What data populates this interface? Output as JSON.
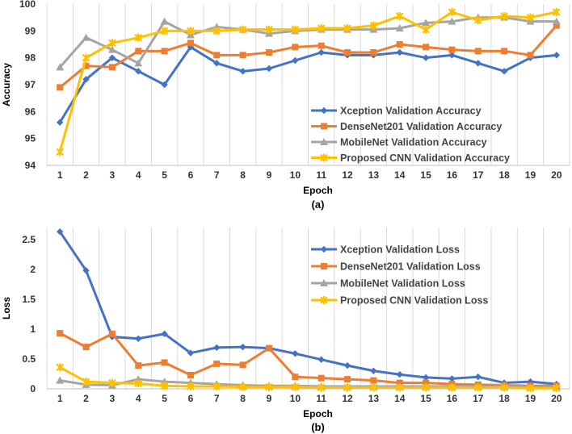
{
  "chart_data": [
    {
      "type": "line",
      "title": "",
      "xlabel": "Epoch",
      "ylabel": "Accuracy",
      "caption": "(a)",
      "categories": [
        "1",
        "2",
        "3",
        "4",
        "5",
        "6",
        "7",
        "8",
        "9",
        "10",
        "11",
        "12",
        "13",
        "14",
        "15",
        "16",
        "17",
        "18",
        "19",
        "20"
      ],
      "ylim": [
        94,
        100
      ],
      "yticks": [
        94,
        95,
        96,
        97,
        98,
        99,
        100
      ],
      "grid": "vertical",
      "legend_position": "bottom-right",
      "series": [
        {
          "name": "Xception Validation Accuracy",
          "color": "#4472C4",
          "marker": "diamond",
          "values": [
            95.6,
            97.2,
            98.0,
            97.5,
            97.0,
            98.4,
            97.8,
            97.5,
            97.6,
            97.9,
            98.2,
            98.1,
            98.1,
            98.2,
            98.0,
            98.1,
            97.8,
            97.5,
            98.0,
            98.1
          ]
        },
        {
          "name": "DenseNet201 Validation Accuracy",
          "color": "#ED7D31",
          "marker": "square",
          "values": [
            96.9,
            97.7,
            97.65,
            98.25,
            98.25,
            98.55,
            98.1,
            98.1,
            98.2,
            98.4,
            98.45,
            98.2,
            98.2,
            98.5,
            98.4,
            98.3,
            98.25,
            98.25,
            98.1,
            99.2
          ]
        },
        {
          "name": "MobileNet Validation Accuracy",
          "color": "#A5A5A5",
          "marker": "triangle",
          "values": [
            97.65,
            98.75,
            98.3,
            97.8,
            99.35,
            98.85,
            99.15,
            99.05,
            98.9,
            99.0,
            99.05,
            99.05,
            99.05,
            99.1,
            99.3,
            99.35,
            99.5,
            99.5,
            99.35,
            99.35
          ]
        },
        {
          "name": "Proposed CNN Validation Accuracy",
          "color": "#FFC000",
          "marker": "star",
          "values": [
            94.5,
            98.0,
            98.55,
            98.75,
            99.0,
            99.0,
            99.0,
            99.05,
            99.05,
            99.05,
            99.1,
            99.1,
            99.2,
            99.55,
            99.05,
            99.7,
            99.4,
            99.55,
            99.5,
            99.7
          ]
        }
      ]
    },
    {
      "type": "line",
      "title": "",
      "xlabel": "Epoch",
      "ylabel": "Loss",
      "caption": "(b)",
      "categories": [
        "1",
        "2",
        "3",
        "4",
        "5",
        "6",
        "7",
        "8",
        "9",
        "10",
        "11",
        "12",
        "13",
        "14",
        "15",
        "16",
        "17",
        "18",
        "19",
        "20"
      ],
      "ylim": [
        0,
        2.7
      ],
      "yticks": [
        0,
        0.5,
        1,
        1.5,
        2,
        2.5
      ],
      "ytick_labels": [
        "0",
        "0.5",
        "1",
        "1.5",
        "2",
        "2.5"
      ],
      "grid": "vertical",
      "legend_position": "top-right",
      "series": [
        {
          "name": "Xception Validation Loss",
          "color": "#4472C4",
          "marker": "diamond",
          "values": [
            2.63,
            1.98,
            0.87,
            0.84,
            0.92,
            0.6,
            0.69,
            0.7,
            0.68,
            0.59,
            0.49,
            0.39,
            0.3,
            0.24,
            0.19,
            0.17,
            0.2,
            0.1,
            0.12,
            0.08
          ]
        },
        {
          "name": "DenseNet201 Validation Loss",
          "color": "#ED7D31",
          "marker": "square",
          "values": [
            0.93,
            0.7,
            0.92,
            0.39,
            0.44,
            0.23,
            0.42,
            0.4,
            0.68,
            0.2,
            0.18,
            0.16,
            0.14,
            0.1,
            0.1,
            0.08,
            0.07,
            0.06,
            0.05,
            0.05
          ]
        },
        {
          "name": "MobileNet Validation Loss",
          "color": "#A5A5A5",
          "marker": "triangle",
          "values": [
            0.14,
            0.07,
            0.06,
            0.16,
            0.12,
            0.1,
            0.08,
            0.06,
            0.05,
            0.05,
            0.04,
            0.04,
            0.04,
            0.04,
            0.04,
            0.04,
            0.04,
            0.04,
            0.03,
            0.03
          ]
        },
        {
          "name": "Proposed CNN Validation Loss",
          "color": "#FFC000",
          "marker": "star",
          "values": [
            0.36,
            0.12,
            0.1,
            0.09,
            0.05,
            0.04,
            0.04,
            0.03,
            0.03,
            0.03,
            0.02,
            0.02,
            0.02,
            0.02,
            0.02,
            0.02,
            0.02,
            0.02,
            0.01,
            0.01
          ]
        }
      ]
    }
  ]
}
